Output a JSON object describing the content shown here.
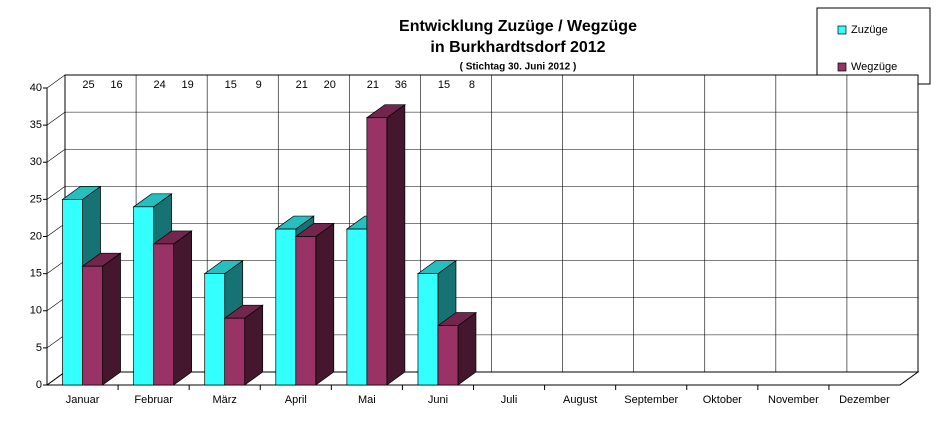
{
  "chart_data": {
    "type": "bar3d",
    "title": [
      "Entwicklung Zuzüge / Wegzüge",
      "in Burkhardtsdorf 2012"
    ],
    "subtitle": "( Stichtag 30. Juni 2012 )",
    "categories": [
      "Januar",
      "Februar",
      "März",
      "April",
      "Mai",
      "Juni",
      "Juli",
      "August",
      "September",
      "Oktober",
      "November",
      "Dezember"
    ],
    "series": [
      {
        "name": "Zuzüge",
        "color": "#33ffff",
        "values": [
          25,
          24,
          15,
          21,
          21,
          15,
          null,
          null,
          null,
          null,
          null,
          null
        ]
      },
      {
        "name": "Wegzüge",
        "color": "#993366",
        "values": [
          16,
          19,
          9,
          20,
          36,
          8,
          null,
          null,
          null,
          null,
          null,
          null
        ]
      }
    ],
    "ylim": [
      0,
      40
    ],
    "yticks": [
      0,
      5,
      10,
      15,
      20,
      25,
      30,
      35,
      40
    ],
    "grid": true,
    "legend": "top-right"
  }
}
